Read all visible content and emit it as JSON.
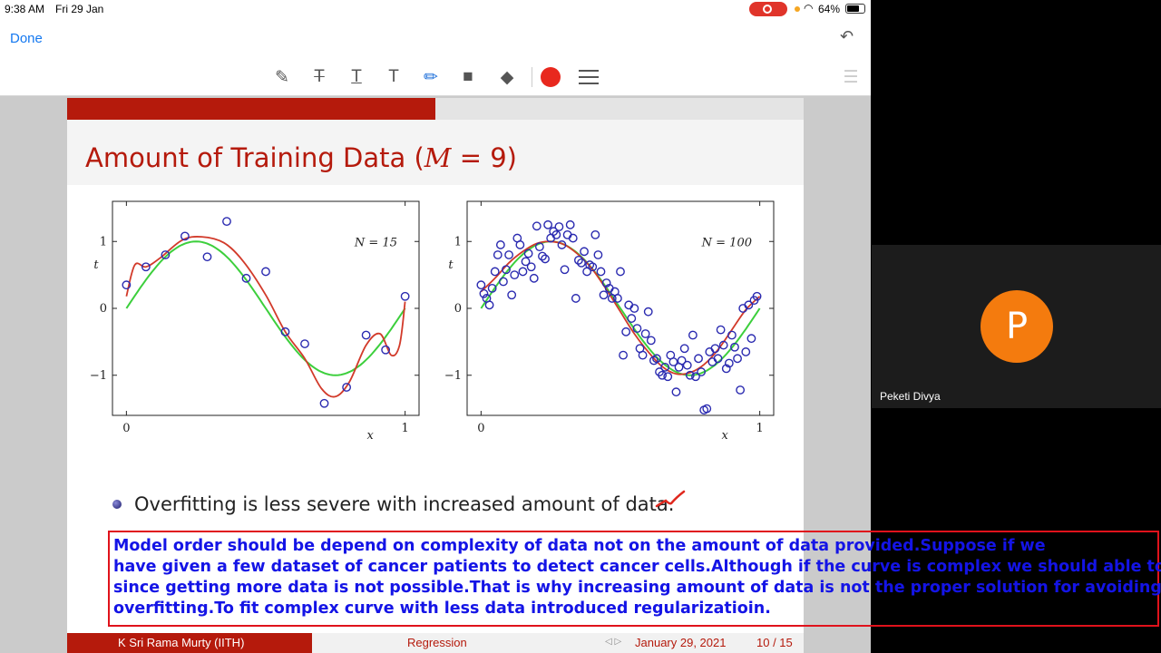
{
  "status_bar": {
    "time": "9:38 AM",
    "date": "Fri 29 Jan",
    "battery": "64%"
  },
  "nav": {
    "done_label": "Done"
  },
  "toolbar": {
    "tools": [
      "pen-tool",
      "strikethrough-text-tool",
      "underline-text-tool",
      "text-tool",
      "highlighter-tool",
      "comment-tool",
      "eraser-tool",
      "color-picker",
      "line-width-tool"
    ],
    "active_color": "#e8281e"
  },
  "slide": {
    "title_prefix": "Amount of Training Data (",
    "title_math": "M",
    "title_suffix": " = 9)",
    "progress": 0.5,
    "bullet": "Overfitting is less severe with increased amount of data.",
    "footer": {
      "author": "K Sri Rama Murty  (IITH)",
      "topic": "Regression",
      "date": "January 29, 2021",
      "page": "10 / 15"
    }
  },
  "chart_data": [
    {
      "type": "scatter",
      "annotation": "N = 15",
      "xlabel": "x",
      "ylabel": "t",
      "xlim": [
        -0.05,
        1.05
      ],
      "ylim": [
        -1.6,
        1.6
      ],
      "xticks": [
        "0",
        "1"
      ],
      "yticks": [
        "1",
        "0",
        "−1"
      ],
      "colors": {
        "points": "#2a2ab0",
        "true_curve": "#3ccf3c",
        "fit_curve": "#d23a2a"
      },
      "points": [
        [
          0.0,
          0.35
        ],
        [
          0.07,
          0.62
        ],
        [
          0.14,
          0.8
        ],
        [
          0.21,
          1.08
        ],
        [
          0.29,
          0.77
        ],
        [
          0.36,
          1.3
        ],
        [
          0.43,
          0.45
        ],
        [
          0.5,
          0.55
        ],
        [
          0.57,
          -0.35
        ],
        [
          0.64,
          -0.53
        ],
        [
          0.71,
          -1.42
        ],
        [
          0.79,
          -1.18
        ],
        [
          0.86,
          -0.4
        ],
        [
          0.93,
          -0.62
        ],
        [
          1.0,
          0.18
        ]
      ],
      "fit_curve": [
        [
          0.0,
          0.18
        ],
        [
          0.03,
          0.65
        ],
        [
          0.07,
          0.62
        ],
        [
          0.12,
          0.75
        ],
        [
          0.2,
          1.02
        ],
        [
          0.27,
          1.07
        ],
        [
          0.35,
          0.98
        ],
        [
          0.42,
          0.7
        ],
        [
          0.5,
          0.2
        ],
        [
          0.57,
          -0.35
        ],
        [
          0.64,
          -0.75
        ],
        [
          0.7,
          -1.2
        ],
        [
          0.75,
          -1.32
        ],
        [
          0.8,
          -1.1
        ],
        [
          0.86,
          -0.55
        ],
        [
          0.91,
          -0.38
        ],
        [
          0.95,
          -0.7
        ],
        [
          0.98,
          -0.55
        ],
        [
          1.0,
          0.1
        ]
      ]
    },
    {
      "type": "scatter",
      "annotation": "N = 100",
      "xlabel": "x",
      "ylabel": "t",
      "xlim": [
        -0.05,
        1.05
      ],
      "ylim": [
        -1.6,
        1.6
      ],
      "xticks": [
        "0",
        "1"
      ],
      "yticks": [
        "1",
        "0",
        "−1"
      ],
      "colors": {
        "points": "#2a2ab0",
        "true_curve": "#3ccf3c",
        "fit_curve": "#d23a2a"
      },
      "points": [
        [
          0.0,
          0.35
        ],
        [
          0.01,
          0.22
        ],
        [
          0.02,
          0.15
        ],
        [
          0.03,
          0.05
        ],
        [
          0.04,
          0.3
        ],
        [
          0.05,
          0.55
        ],
        [
          0.06,
          0.8
        ],
        [
          0.07,
          0.95
        ],
        [
          0.08,
          0.4
        ],
        [
          0.09,
          0.58
        ],
        [
          0.1,
          0.8
        ],
        [
          0.11,
          0.2
        ],
        [
          0.12,
          0.5
        ],
        [
          0.13,
          1.05
        ],
        [
          0.14,
          0.95
        ],
        [
          0.15,
          0.55
        ],
        [
          0.16,
          0.7
        ],
        [
          0.17,
          0.82
        ],
        [
          0.18,
          0.62
        ],
        [
          0.19,
          0.45
        ],
        [
          0.2,
          1.23
        ],
        [
          0.21,
          0.92
        ],
        [
          0.22,
          0.78
        ],
        [
          0.23,
          0.74
        ],
        [
          0.24,
          1.25
        ],
        [
          0.25,
          1.05
        ],
        [
          0.26,
          1.15
        ],
        [
          0.27,
          1.1
        ],
        [
          0.28,
          1.22
        ],
        [
          0.29,
          0.95
        ],
        [
          0.3,
          0.58
        ],
        [
          0.31,
          1.1
        ],
        [
          0.32,
          1.25
        ],
        [
          0.33,
          1.05
        ],
        [
          0.34,
          0.15
        ],
        [
          0.35,
          0.72
        ],
        [
          0.36,
          0.68
        ],
        [
          0.37,
          0.85
        ],
        [
          0.38,
          0.55
        ],
        [
          0.39,
          0.65
        ],
        [
          0.4,
          0.62
        ],
        [
          0.41,
          1.1
        ],
        [
          0.42,
          0.8
        ],
        [
          0.43,
          0.55
        ],
        [
          0.44,
          0.2
        ],
        [
          0.45,
          0.38
        ],
        [
          0.46,
          0.3
        ],
        [
          0.47,
          0.15
        ],
        [
          0.48,
          0.25
        ],
        [
          0.49,
          0.15
        ],
        [
          0.5,
          0.55
        ],
        [
          0.51,
          -0.7
        ],
        [
          0.52,
          -0.35
        ],
        [
          0.53,
          0.05
        ],
        [
          0.54,
          -0.15
        ],
        [
          0.55,
          0.0
        ],
        [
          0.56,
          -0.3
        ],
        [
          0.57,
          -0.6
        ],
        [
          0.58,
          -0.7
        ],
        [
          0.59,
          -0.38
        ],
        [
          0.6,
          -0.05
        ],
        [
          0.61,
          -0.48
        ],
        [
          0.62,
          -0.78
        ],
        [
          0.63,
          -0.75
        ],
        [
          0.64,
          -0.95
        ],
        [
          0.65,
          -1.0
        ],
        [
          0.66,
          -0.88
        ],
        [
          0.67,
          -1.02
        ],
        [
          0.68,
          -0.7
        ],
        [
          0.69,
          -0.8
        ],
        [
          0.7,
          -1.25
        ],
        [
          0.71,
          -0.88
        ],
        [
          0.72,
          -0.78
        ],
        [
          0.73,
          -0.6
        ],
        [
          0.74,
          -0.85
        ],
        [
          0.75,
          -1.0
        ],
        [
          0.76,
          -0.4
        ],
        [
          0.77,
          -1.02
        ],
        [
          0.78,
          -0.75
        ],
        [
          0.79,
          -0.95
        ],
        [
          0.8,
          -1.52
        ],
        [
          0.81,
          -1.5
        ],
        [
          0.82,
          -0.65
        ],
        [
          0.83,
          -0.8
        ],
        [
          0.84,
          -0.6
        ],
        [
          0.85,
          -0.75
        ],
        [
          0.86,
          -0.32
        ],
        [
          0.87,
          -0.55
        ],
        [
          0.88,
          -0.9
        ],
        [
          0.89,
          -0.82
        ],
        [
          0.9,
          -0.4
        ],
        [
          0.91,
          -0.58
        ],
        [
          0.92,
          -0.75
        ],
        [
          0.93,
          -1.22
        ],
        [
          0.94,
          0.0
        ],
        [
          0.95,
          -0.65
        ],
        [
          0.96,
          0.05
        ],
        [
          0.97,
          -0.45
        ],
        [
          0.98,
          0.12
        ],
        [
          0.99,
          0.18
        ]
      ],
      "fit_curve": [
        [
          0.0,
          0.25
        ],
        [
          0.05,
          0.45
        ],
        [
          0.1,
          0.68
        ],
        [
          0.15,
          0.85
        ],
        [
          0.2,
          0.97
        ],
        [
          0.25,
          1.0
        ],
        [
          0.3,
          0.95
        ],
        [
          0.35,
          0.8
        ],
        [
          0.4,
          0.58
        ],
        [
          0.45,
          0.28
        ],
        [
          0.5,
          -0.05
        ],
        [
          0.55,
          -0.38
        ],
        [
          0.6,
          -0.65
        ],
        [
          0.65,
          -0.87
        ],
        [
          0.7,
          -0.98
        ],
        [
          0.75,
          -0.96
        ],
        [
          0.8,
          -0.84
        ],
        [
          0.85,
          -0.62
        ],
        [
          0.9,
          -0.32
        ],
        [
          0.95,
          -0.02
        ],
        [
          1.0,
          0.18
        ]
      ]
    }
  ],
  "participant": {
    "initial": "P",
    "name": "Peketi Divya"
  },
  "caption": {
    "lines": [
      "Model order should be depend on complexity of data not on the amount of data provided.Suppose if we",
      "have given a few dataset of cancer patients to detect cancer cells.Although if the curve is complex we should able to fit",
      "since getting more data is not possible.That is why increasing amount of data is not the proper solution for avoiding",
      "overfitting.To fit complex curve with less data introduced regularizatioin."
    ]
  }
}
